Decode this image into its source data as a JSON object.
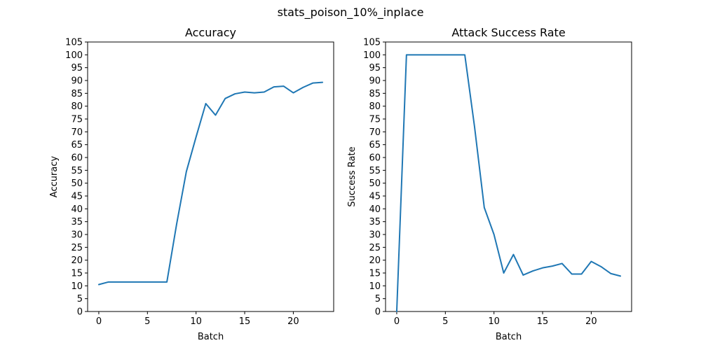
{
  "figure": {
    "suptitle": "stats_poison_10%_inplace"
  },
  "chart_data": [
    {
      "type": "line",
      "title": "Accuracy",
      "xlabel": "Batch",
      "ylabel": "Accuracy",
      "xlim": [
        -1.15,
        24.15
      ],
      "ylim": [
        0,
        105
      ],
      "xticks": [
        0,
        5,
        10,
        15,
        20
      ],
      "yticks": [
        0,
        5,
        10,
        15,
        20,
        25,
        30,
        35,
        40,
        45,
        50,
        55,
        60,
        65,
        70,
        75,
        80,
        85,
        90,
        95,
        100,
        105
      ],
      "grid": false,
      "color": "#1f77b4",
      "series": [
        {
          "x": [
            0,
            1,
            2,
            3,
            4,
            5,
            6,
            7,
            8,
            9,
            10,
            11,
            12,
            13,
            14,
            15,
            16,
            17,
            18,
            19,
            20,
            21,
            22,
            23
          ],
          "values": [
            10.5,
            11.5,
            11.5,
            11.5,
            11.5,
            11.5,
            11.5,
            11.5,
            34.0,
            54.5,
            68.0,
            81.0,
            76.5,
            83.0,
            84.8,
            85.5,
            85.2,
            85.5,
            87.5,
            87.8,
            85.2,
            87.3,
            89.0,
            89.3
          ]
        }
      ]
    },
    {
      "type": "line",
      "title": "Attack Success Rate",
      "xlabel": "Batch",
      "ylabel": "Success Rate",
      "xlim": [
        -1.15,
        24.15
      ],
      "ylim": [
        0,
        105
      ],
      "xticks": [
        0,
        5,
        10,
        15,
        20
      ],
      "yticks": [
        0,
        5,
        10,
        15,
        20,
        25,
        30,
        35,
        40,
        45,
        50,
        55,
        60,
        65,
        70,
        75,
        80,
        85,
        90,
        95,
        100,
        105
      ],
      "grid": false,
      "color": "#1f77b4",
      "series": [
        {
          "x": [
            0,
            1,
            2,
            3,
            4,
            5,
            6,
            7,
            8,
            9,
            10,
            11,
            12,
            13,
            14,
            15,
            16,
            17,
            18,
            19,
            20,
            21,
            22,
            23
          ],
          "values": [
            0,
            100,
            100,
            100,
            100,
            100,
            100,
            100,
            72.0,
            40.5,
            30.0,
            15.0,
            22.2,
            14.2,
            15.8,
            17.0,
            17.7,
            18.7,
            14.6,
            14.6,
            19.5,
            17.5,
            14.8,
            13.8
          ]
        }
      ]
    }
  ]
}
